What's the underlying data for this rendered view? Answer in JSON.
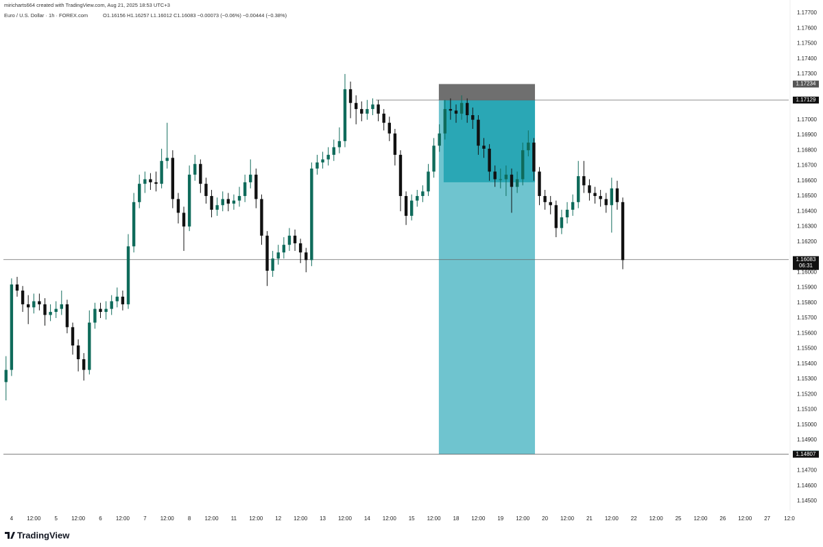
{
  "chart_data": {
    "type": "candlestick",
    "credit": "miricharts664 created with TradingView.com, Aug 21, 2025 18:53 UTC+3",
    "title": "Euro / U.S. Dollar · 1h · FOREX.com",
    "ohlc_text": "O1.16156 H1.16257 L1.16012 C1.16083 −0.00073 (−0.06%) −0.00444 (−0.38%)",
    "brand": "TradingView",
    "up_color": "#0f6b5b",
    "down_color": "#111111",
    "xlim": [
      -4.4,
      419.6
    ],
    "ylim": [
      1.14437,
      1.17785
    ],
    "xticks": [
      {
        "value": 0,
        "label": "4"
      },
      {
        "value": 12,
        "label": "12:00"
      },
      {
        "value": 24,
        "label": "5"
      },
      {
        "value": 36,
        "label": "12:00"
      },
      {
        "value": 48,
        "label": "6"
      },
      {
        "value": 60,
        "label": "12:00"
      },
      {
        "value": 72,
        "label": "7"
      },
      {
        "value": 84,
        "label": "12:00"
      },
      {
        "value": 96,
        "label": "8"
      },
      {
        "value": 108,
        "label": "12:00"
      },
      {
        "value": 120,
        "label": "11"
      },
      {
        "value": 132,
        "label": "12:00"
      },
      {
        "value": 144,
        "label": "12"
      },
      {
        "value": 156,
        "label": "12:00"
      },
      {
        "value": 168,
        "label": "13"
      },
      {
        "value": 180,
        "label": "12:00"
      },
      {
        "value": 192,
        "label": "14"
      },
      {
        "value": 204,
        "label": "12:00"
      },
      {
        "value": 216,
        "label": "15"
      },
      {
        "value": 228,
        "label": "12:00"
      },
      {
        "value": 240,
        "label": "18"
      },
      {
        "value": 252,
        "label": "12:00"
      },
      {
        "value": 264,
        "label": "19"
      },
      {
        "value": 276,
        "label": "12:00"
      },
      {
        "value": 288,
        "label": "20"
      },
      {
        "value": 300,
        "label": "12:00"
      },
      {
        "value": 312,
        "label": "21"
      },
      {
        "value": 324,
        "label": "12:00"
      },
      {
        "value": 336,
        "label": "22"
      },
      {
        "value": 348,
        "label": "12:00"
      },
      {
        "value": 360,
        "label": "25"
      },
      {
        "value": 372,
        "label": "12:00"
      },
      {
        "value": 384,
        "label": "26"
      },
      {
        "value": 396,
        "label": "12:00"
      },
      {
        "value": 408,
        "label": "27"
      },
      {
        "value": 420,
        "label": "12:0"
      }
    ],
    "yticks": [
      {
        "value": 1.177,
        "label": "1.17700"
      },
      {
        "value": 1.176,
        "label": "1.17600"
      },
      {
        "value": 1.175,
        "label": "1.17500"
      },
      {
        "value": 1.174,
        "label": "1.17400"
      },
      {
        "value": 1.173,
        "label": "1.17300"
      },
      {
        "value": 1.17,
        "label": "1.17000"
      },
      {
        "value": 1.169,
        "label": "1.16900"
      },
      {
        "value": 1.168,
        "label": "1.16800"
      },
      {
        "value": 1.167,
        "label": "1.16700"
      },
      {
        "value": 1.166,
        "label": "1.16600"
      },
      {
        "value": 1.165,
        "label": "1.16500"
      },
      {
        "value": 1.164,
        "label": "1.16400"
      },
      {
        "value": 1.163,
        "label": "1.16300"
      },
      {
        "value": 1.162,
        "label": "1.16200"
      },
      {
        "value": 1.16,
        "label": "1.16000"
      },
      {
        "value": 1.159,
        "label": "1.15900"
      },
      {
        "value": 1.158,
        "label": "1.15800"
      },
      {
        "value": 1.157,
        "label": "1.15700"
      },
      {
        "value": 1.156,
        "label": "1.15600"
      },
      {
        "value": 1.155,
        "label": "1.15500"
      },
      {
        "value": 1.154,
        "label": "1.15400"
      },
      {
        "value": 1.153,
        "label": "1.15300"
      },
      {
        "value": 1.152,
        "label": "1.15200"
      },
      {
        "value": 1.151,
        "label": "1.15100"
      },
      {
        "value": 1.15,
        "label": "1.15000"
      },
      {
        "value": 1.149,
        "label": "1.14900"
      },
      {
        "value": 1.147,
        "label": "1.14700"
      },
      {
        "value": 1.146,
        "label": "1.14600"
      },
      {
        "value": 1.145,
        "label": "1.14500"
      }
    ],
    "x": [
      -3,
      0,
      3,
      6,
      9,
      12,
      15,
      18,
      21,
      24,
      27,
      30,
      33,
      36,
      39,
      42,
      45,
      48,
      51,
      54,
      57,
      60,
      63,
      66,
      69,
      72,
      75,
      78,
      81,
      84,
      87,
      90,
      93,
      96,
      99,
      102,
      105,
      108,
      111,
      114,
      117,
      120,
      123,
      126,
      129,
      132,
      135,
      138,
      141,
      144,
      147,
      150,
      153,
      156,
      159,
      162,
      165,
      168,
      171,
      174,
      177,
      180,
      183,
      186,
      189,
      192,
      195,
      198,
      201,
      204,
      207,
      210,
      213,
      216,
      219,
      222,
      225,
      228,
      231,
      234,
      237,
      240,
      243,
      246,
      249,
      252,
      255,
      258,
      261,
      264,
      267,
      270,
      273,
      276,
      279,
      282,
      285,
      288,
      291,
      294,
      297,
      300,
      303,
      306,
      309,
      312,
      315,
      318,
      321,
      324,
      327,
      330
    ],
    "open": [
      1.1528,
      1.1536,
      1.1592,
      1.1588,
      1.1579,
      1.1577,
      1.1581,
      1.1579,
      1.1572,
      1.1574,
      1.1576,
      1.1579,
      1.1564,
      1.1552,
      1.1543,
      1.1536,
      1.1567,
      1.1576,
      1.1574,
      1.1576,
      1.1581,
      1.1584,
      1.1579,
      1.1617,
      1.1646,
      1.1658,
      1.1661,
      1.1659,
      1.1658,
      1.1673,
      1.1675,
      1.1648,
      1.1639,
      1.163,
      1.1664,
      1.1671,
      1.1658,
      1.165,
      1.1641,
      1.1644,
      1.1648,
      1.1645,
      1.1647,
      1.165,
      1.1659,
      1.1664,
      1.1648,
      1.1624,
      1.1601,
      1.1609,
      1.1613,
      1.1618,
      1.1624,
      1.1619,
      1.1613,
      1.1608,
      1.1668,
      1.1672,
      1.1674,
      1.1677,
      1.1682,
      1.1686,
      1.172,
      1.1711,
      1.1707,
      1.1704,
      1.1707,
      1.171,
      1.1704,
      1.1698,
      1.1691,
      1.1677,
      1.165,
      1.1637,
      1.1647,
      1.165,
      1.1653,
      1.1666,
      1.1683,
      1.1691,
      1.1707,
      1.1706,
      1.1704,
      1.1711,
      1.1703,
      1.17,
      1.1683,
      1.1681,
      1.1666,
      1.1661,
      1.1661,
      1.1664,
      1.1656,
      1.1661,
      1.168,
      1.1685,
      1.1666,
      1.165,
      1.1646,
      1.1644,
      1.1629,
      1.1636,
      1.1641,
      1.1646,
      1.1663,
      1.1657,
      1.1652,
      1.165,
      1.1648,
      1.1644,
      1.1655,
      1.1646
    ],
    "high": [
      1.1545,
      1.1596,
      1.1597,
      1.1591,
      1.1585,
      1.1586,
      1.1586,
      1.1583,
      1.1579,
      1.1581,
      1.1588,
      1.1582,
      1.1567,
      1.1556,
      1.1547,
      1.1575,
      1.158,
      1.158,
      1.1581,
      1.1585,
      1.159,
      1.1588,
      1.1625,
      1.1652,
      1.1664,
      1.1666,
      1.1665,
      1.1666,
      1.1681,
      1.1698,
      1.168,
      1.1652,
      1.1643,
      1.167,
      1.1677,
      1.1674,
      1.1662,
      1.1654,
      1.1649,
      1.1653,
      1.1652,
      1.1651,
      1.1656,
      1.1664,
      1.1674,
      1.1668,
      1.1651,
      1.1627,
      1.1614,
      1.1618,
      1.1623,
      1.1629,
      1.1628,
      1.1622,
      1.1616,
      1.1672,
      1.1677,
      1.1679,
      1.1682,
      1.1687,
      1.1695,
      1.173,
      1.1725,
      1.1716,
      1.1712,
      1.1713,
      1.1714,
      1.1713,
      1.1707,
      1.1702,
      1.1694,
      1.168,
      1.1653,
      1.1651,
      1.1654,
      1.1657,
      1.1671,
      1.1688,
      1.1697,
      1.1713,
      1.1714,
      1.171,
      1.1716,
      1.1714,
      1.1708,
      1.1703,
      1.1688,
      1.1684,
      1.167,
      1.1668,
      1.167,
      1.1668,
      1.1666,
      1.1685,
      1.1693,
      1.1688,
      1.1669,
      1.1654,
      1.165,
      1.1647,
      1.1641,
      1.1646,
      1.1651,
      1.1673,
      1.1673,
      1.1661,
      1.1656,
      1.1654,
      1.1652,
      1.1662,
      1.166,
      1.1649
    ],
    "low": [
      1.1516,
      1.1532,
      1.1584,
      1.1574,
      1.1566,
      1.1573,
      1.1575,
      1.1565,
      1.1568,
      1.157,
      1.1572,
      1.156,
      1.1546,
      1.1535,
      1.1529,
      1.1533,
      1.1563,
      1.157,
      1.1569,
      1.1572,
      1.1577,
      1.1575,
      1.1576,
      1.1613,
      1.1642,
      1.1652,
      1.1654,
      1.1653,
      1.1655,
      1.1668,
      1.1642,
      1.1632,
      1.1614,
      1.1627,
      1.166,
      1.1652,
      1.1645,
      1.1636,
      1.1637,
      1.164,
      1.164,
      1.1641,
      1.1643,
      1.1646,
      1.1655,
      1.1642,
      1.1618,
      1.1591,
      1.1597,
      1.1605,
      1.1609,
      1.1614,
      1.1614,
      1.1606,
      1.16,
      1.1604,
      1.1664,
      1.1668,
      1.167,
      1.1673,
      1.1678,
      1.1682,
      1.1701,
      1.1697,
      1.1699,
      1.17,
      1.1703,
      1.1699,
      1.1693,
      1.1686,
      1.167,
      1.164,
      1.1631,
      1.1634,
      1.1643,
      1.1646,
      1.165,
      1.1662,
      1.1679,
      1.1687,
      1.17,
      1.1698,
      1.17,
      1.1698,
      1.1694,
      1.1677,
      1.1675,
      1.166,
      1.1656,
      1.1655,
      1.165,
      1.1639,
      1.1652,
      1.1657,
      1.1676,
      1.166,
      1.1644,
      1.1641,
      1.1638,
      1.1623,
      1.1625,
      1.1632,
      1.1637,
      1.1642,
      1.1652,
      1.1647,
      1.1645,
      1.1643,
      1.1639,
      1.1626,
      1.1641,
      1.1602
    ],
    "close": [
      1.1536,
      1.1592,
      1.1588,
      1.1579,
      1.1577,
      1.1581,
      1.1579,
      1.1572,
      1.1574,
      1.1576,
      1.1579,
      1.1564,
      1.1552,
      1.1543,
      1.1536,
      1.1567,
      1.1576,
      1.1574,
      1.1576,
      1.1581,
      1.1584,
      1.1579,
      1.1617,
      1.1646,
      1.1658,
      1.1661,
      1.1659,
      1.1658,
      1.1673,
      1.1675,
      1.1648,
      1.1639,
      1.163,
      1.1664,
      1.1671,
      1.1658,
      1.165,
      1.1641,
      1.1644,
      1.1648,
      1.1645,
      1.1647,
      1.165,
      1.1659,
      1.1664,
      1.1648,
      1.1624,
      1.1601,
      1.1609,
      1.1613,
      1.1618,
      1.1624,
      1.1619,
      1.1613,
      1.1608,
      1.1668,
      1.1672,
      1.1674,
      1.1677,
      1.1682,
      1.1686,
      1.172,
      1.1711,
      1.1707,
      1.1704,
      1.1707,
      1.171,
      1.1704,
      1.1698,
      1.1691,
      1.1677,
      1.165,
      1.1637,
      1.1647,
      1.165,
      1.1653,
      1.1666,
      1.1683,
      1.1691,
      1.1707,
      1.1706,
      1.1704,
      1.1711,
      1.1703,
      1.17,
      1.1683,
      1.1681,
      1.1666,
      1.1661,
      1.1661,
      1.1664,
      1.1656,
      1.1661,
      1.168,
      1.1685,
      1.1666,
      1.165,
      1.1646,
      1.1644,
      1.1629,
      1.1636,
      1.1641,
      1.1646,
      1.1663,
      1.1657,
      1.1652,
      1.165,
      1.1648,
      1.1644,
      1.1655,
      1.1646,
      1.1608
    ],
    "position": {
      "x_start": 230.7,
      "x_end": 282.6,
      "entry": 1.17129,
      "stop": 1.17234,
      "target": 1.14808,
      "filled_x_start": 233.3,
      "filled_low": 1.1659,
      "target_color": "#6fc4cf",
      "filled_color": "#2aa7b5",
      "stop_color": "#6f6f6f"
    },
    "hlines": [
      {
        "value": 1.17129,
        "x_start": 196.7
      },
      {
        "value": 1.16083,
        "x_start": -4.4
      },
      {
        "value": 1.14807,
        "x_start": -4.4
      }
    ],
    "price_tags": [
      {
        "value": 1.17234,
        "color": "#555555"
      },
      {
        "value": 1.17129,
        "color": "#111111"
      },
      {
        "value": 1.16083,
        "countdown": "06:31",
        "color": "#111111"
      },
      {
        "value": 1.14808,
        "color": "#2aa7b5"
      },
      {
        "value": 1.14807,
        "color": "#111111"
      }
    ]
  }
}
